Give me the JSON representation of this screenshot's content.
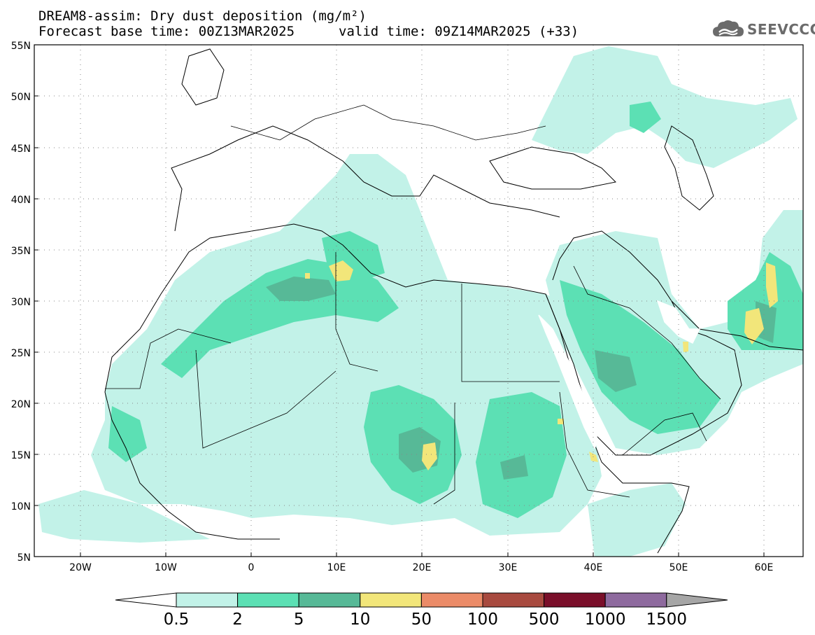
{
  "header": {
    "title": "DREAM8-assim: Dry dust deposition (mg/m²)",
    "base_time": "Forecast base time: 00Z13MAR2025",
    "valid_time": "valid time: 09Z14MAR2025 (+33)",
    "logo_text": "SEEVCCC"
  },
  "map": {
    "lat_labels": [
      "55N",
      "50N",
      "45N",
      "40N",
      "35N",
      "30N",
      "25N",
      "20N",
      "15N",
      "10N",
      "5N"
    ],
    "lon_labels": [
      "20W",
      "10W",
      "0",
      "10E",
      "20E",
      "30E",
      "40E",
      "50E",
      "60E"
    ]
  },
  "colorbar": {
    "labels": [
      "0.5",
      "2",
      "5",
      "10",
      "50",
      "100",
      "500",
      "1000",
      "1500"
    ],
    "colors": [
      "#c2f2e8",
      "#5ce0b4",
      "#57b997",
      "#f2e67a",
      "#eb8b68",
      "#a84a3f",
      "#7a0f2a",
      "#8e6a9e",
      "#a6a6a6"
    ]
  },
  "palette": {
    "level_0_5": "#c2f2e8",
    "level_2": "#5ce0b4",
    "level_5": "#57b997",
    "level_10": "#f2e67a"
  }
}
